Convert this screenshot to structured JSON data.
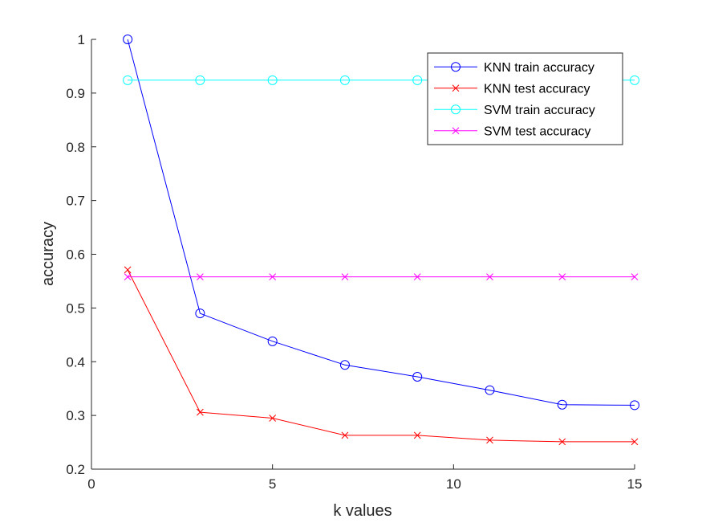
{
  "chart_data": {
    "type": "line",
    "xlabel": "k values",
    "ylabel": "accuracy",
    "xlim": [
      0,
      15
    ],
    "ylim": [
      0.2,
      1
    ],
    "xticks": [
      "0",
      "5",
      "10",
      "15"
    ],
    "yticks": [
      "0.2",
      "0.3",
      "0.4",
      "0.5",
      "0.6",
      "0.7",
      "0.8",
      "0.9",
      "1"
    ],
    "grid": false,
    "legend_position": "top-right",
    "x": [
      1,
      3,
      5,
      7,
      9,
      11,
      13,
      15
    ],
    "series": [
      {
        "name": "KNN train accuracy",
        "color": "#0000ff",
        "marker": "circle",
        "values": [
          1.0,
          0.49,
          0.438,
          0.394,
          0.372,
          0.347,
          0.32,
          0.319
        ]
      },
      {
        "name": "KNN test accuracy",
        "color": "#ff0000",
        "marker": "x",
        "values": [
          0.571,
          0.306,
          0.295,
          0.263,
          0.263,
          0.254,
          0.251,
          0.251
        ]
      },
      {
        "name": "SVM train accuracy",
        "color": "#00ffff",
        "marker": "circle",
        "values": [
          0.924,
          0.924,
          0.924,
          0.924,
          0.924,
          0.924,
          0.924,
          0.924
        ]
      },
      {
        "name": "SVM test accuracy",
        "color": "#ff00ff",
        "marker": "x",
        "values": [
          0.558,
          0.558,
          0.558,
          0.558,
          0.558,
          0.558,
          0.558,
          0.558
        ]
      }
    ]
  }
}
